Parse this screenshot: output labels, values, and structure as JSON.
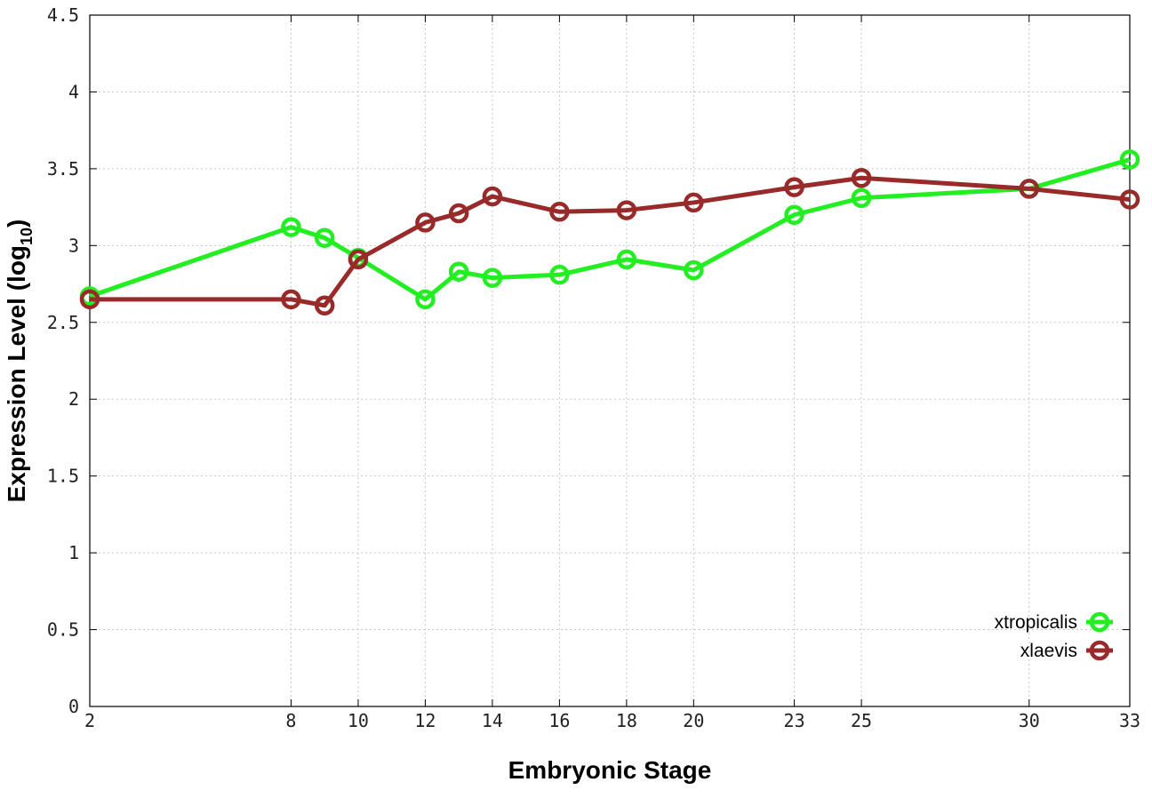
{
  "chart_data": {
    "type": "line",
    "title": "",
    "xlabel": "Embryonic Stage",
    "ylabel": "Expression Level (log",
    "ylabel_subscript": "10",
    "ylabel_suffix": ")",
    "xlim": [
      2,
      33
    ],
    "ylim": [
      0,
      4.5
    ],
    "x_ticks": [
      2,
      8,
      10,
      12,
      14,
      16,
      18,
      20,
      23,
      25,
      30,
      33
    ],
    "x_tick_labels": [
      "2",
      "8",
      "10",
      "12",
      "14",
      "16",
      "18",
      "20",
      "23",
      "25",
      "30",
      "33"
    ],
    "y_ticks": [
      0,
      0.5,
      1,
      1.5,
      2,
      2.5,
      3,
      3.5,
      4,
      4.5
    ],
    "y_tick_labels": [
      "0",
      "0.5",
      "1",
      "1.5",
      "2",
      "2.5",
      "3",
      "3.5",
      "4",
      "4.5"
    ],
    "grid": true,
    "legend_position": "bottom-right",
    "series": [
      {
        "name": "xtropicalis",
        "color": "#22ee22",
        "x": [
          2,
          8,
          9,
          10,
          12,
          13,
          14,
          16,
          18,
          20,
          23,
          25,
          30,
          33
        ],
        "y": [
          2.67,
          3.12,
          3.05,
          2.92,
          2.65,
          2.83,
          2.79,
          2.81,
          2.91,
          2.84,
          3.2,
          3.31,
          3.37,
          3.56
        ]
      },
      {
        "name": "xlaevis",
        "color": "#992a2a",
        "x": [
          2,
          8,
          9,
          10,
          12,
          13,
          14,
          16,
          18,
          20,
          23,
          25,
          30,
          33
        ],
        "y": [
          2.65,
          2.65,
          2.61,
          2.91,
          3.15,
          3.21,
          3.32,
          3.22,
          3.23,
          3.28,
          3.38,
          3.44,
          3.37,
          3.3
        ]
      }
    ]
  }
}
